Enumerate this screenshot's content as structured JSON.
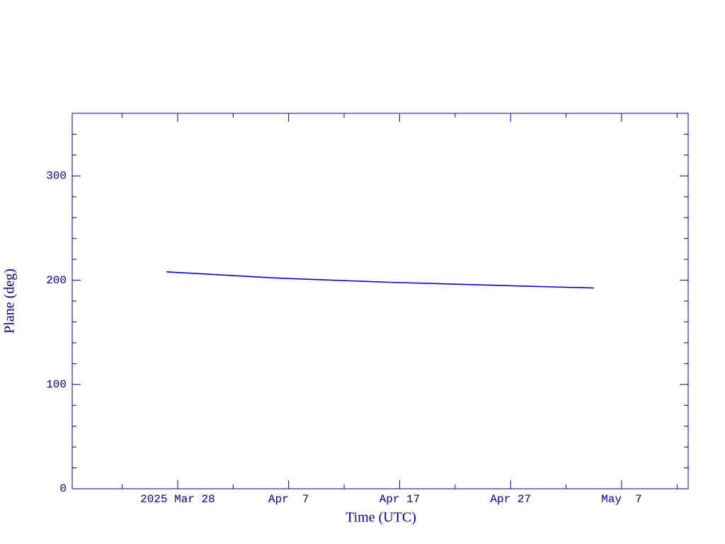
{
  "chart_data": {
    "type": "line",
    "xlabel": "Time (UTC)",
    "ylabel": "Plane (deg)",
    "x": [
      "2025-03-27T00:00:00Z",
      "2025-04-01T00:00:00Z",
      "2025-04-06T00:00:00Z",
      "2025-04-11T00:00:00Z",
      "2025-04-16T00:00:00Z",
      "2025-04-21T00:00:00Z",
      "2025-04-26T00:00:00Z",
      "2025-05-01T00:00:00Z",
      "2025-05-04T12:00:00Z"
    ],
    "series": [
      {
        "color": "#0000cc",
        "values": [
          208,
          205,
          202,
          200,
          198,
          196.5,
          195,
          193.5,
          192.5
        ]
      }
    ],
    "xlim": [
      "2025-03-18T12:00:00Z",
      "2025-05-13T00:00:00Z"
    ],
    "xticks": [
      {
        "value": "2025-03-28T00:00:00Z",
        "label": "2025 Mar 28"
      },
      {
        "value": "2025-04-07T00:00:00Z",
        "label": "Apr  7"
      },
      {
        "value": "2025-04-17T00:00:00Z",
        "label": "Apr 17"
      },
      {
        "value": "2025-04-27T00:00:00Z",
        "label": "Apr 27"
      },
      {
        "value": "2025-05-07T00:00:00Z",
        "label": "May  7"
      }
    ],
    "xminorticks": [
      "2025-03-23T00:00:00Z",
      "2025-04-02T00:00:00Z",
      "2025-04-12T00:00:00Z",
      "2025-04-22T00:00:00Z",
      "2025-05-02T00:00:00Z",
      "2025-05-12T00:00:00Z"
    ],
    "ylim": [
      0,
      360
    ],
    "yticks": [
      0,
      100,
      200,
      300
    ],
    "yminorticks": [
      20,
      40,
      60,
      80,
      120,
      140,
      160,
      180,
      220,
      240,
      260,
      280,
      320,
      340
    ],
    "axis_color": "#000080"
  }
}
